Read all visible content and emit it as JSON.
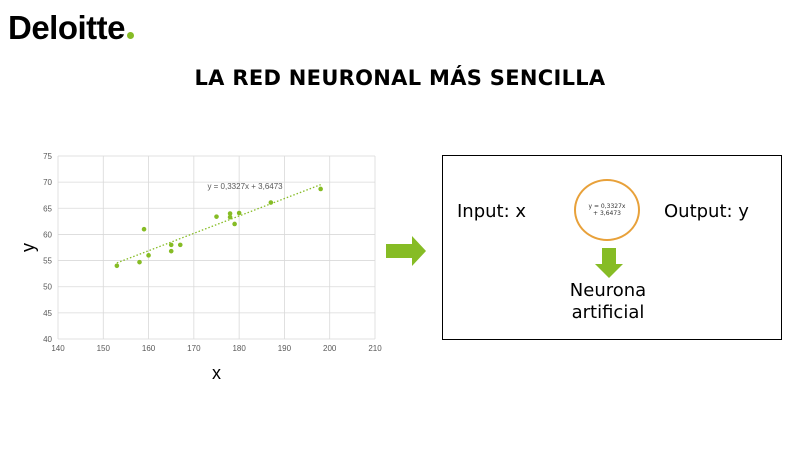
{
  "logo": {
    "text": "Deloitte",
    "dot_color": "#86bc25"
  },
  "slide_title": "LA RED NEURONAL MÁS SENCILLA",
  "colors": {
    "accent": "#86bc25",
    "orange": "#e8a13a",
    "grid": "#d9d9d9",
    "axis_text": "#595959"
  },
  "chart_data": {
    "type": "scatter",
    "xlabel": "x",
    "ylabel": "y",
    "xlim": [
      140,
      210
    ],
    "ylim": [
      40,
      75
    ],
    "xticks": [
      140,
      150,
      160,
      170,
      180,
      190,
      200,
      210
    ],
    "yticks": [
      40,
      45,
      50,
      55,
      60,
      65,
      70,
      75
    ],
    "grid": true,
    "points": [
      {
        "x": 153,
        "y": 54
      },
      {
        "x": 158,
        "y": 54.7
      },
      {
        "x": 159,
        "y": 61
      },
      {
        "x": 160,
        "y": 56
      },
      {
        "x": 165,
        "y": 58
      },
      {
        "x": 165,
        "y": 56.8
      },
      {
        "x": 167,
        "y": 58
      },
      {
        "x": 175,
        "y": 63.4
      },
      {
        "x": 178,
        "y": 64
      },
      {
        "x": 178,
        "y": 63.3
      },
      {
        "x": 179,
        "y": 62
      },
      {
        "x": 180,
        "y": 64.1
      },
      {
        "x": 187,
        "y": 66.1
      },
      {
        "x": 198,
        "y": 68.7
      }
    ],
    "trendline": {
      "slope": 0.3327,
      "intercept": 3.6473,
      "x_range": [
        153,
        198
      ],
      "label": "y = 0,3327x + 3,6473",
      "style": "dotted"
    }
  },
  "diagram": {
    "input_label": "Input: x",
    "output_label": "Output: y",
    "neuron_formula": "y = 0,3327x + 3,6473",
    "neuron_caption": "Neurona artificial"
  }
}
